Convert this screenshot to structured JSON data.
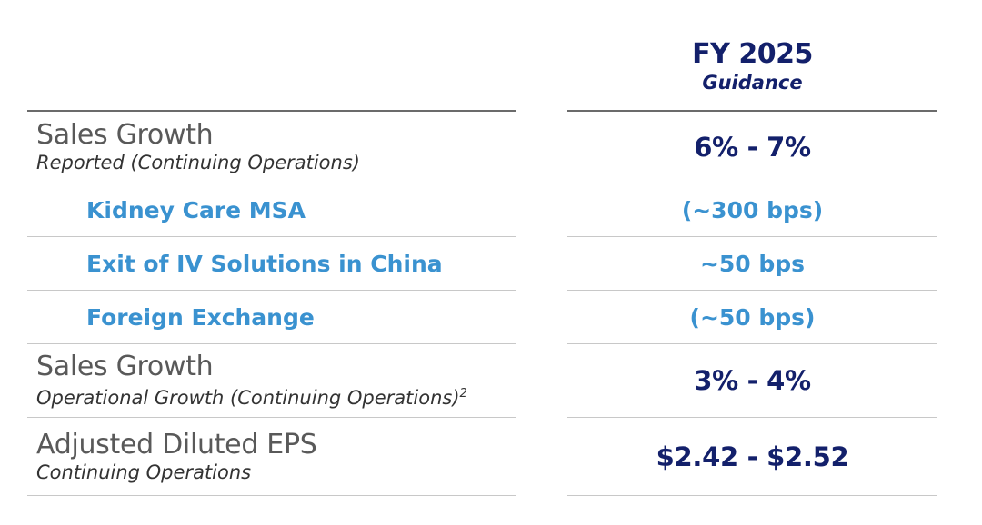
{
  "header": {
    "title": "FY 2025",
    "subtitle": "Guidance"
  },
  "rows": [
    {
      "label": "Sales Growth",
      "sublabel": "Reported (Continuing Operations)",
      "value": "6% - 7%"
    },
    {
      "label": "Kidney Care MSA",
      "value": "(~300 bps)"
    },
    {
      "label": "Exit of IV Solutions in China",
      "value": "~50 bps"
    },
    {
      "label": "Foreign Exchange",
      "value": "(~50 bps)"
    },
    {
      "label": "Sales Growth",
      "sublabel": "Operational Growth (Continuing Operations)",
      "footnote": "2",
      "value": "3% - 4%"
    },
    {
      "label": "Adjusted Diluted EPS",
      "sublabel": "Continuing Operations",
      "value": "$2.42 - $2.52"
    }
  ]
}
